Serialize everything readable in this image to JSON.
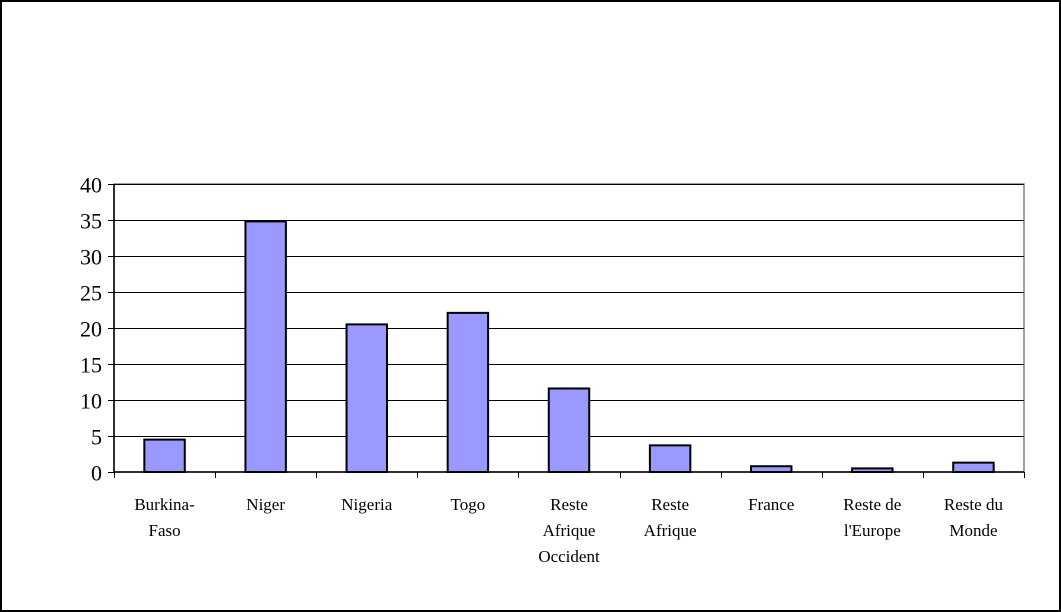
{
  "chart_data": {
    "type": "bar",
    "title": "",
    "xlabel": "",
    "ylabel": "",
    "categories": [
      [
        "Burkina-",
        "Faso"
      ],
      [
        "Niger"
      ],
      [
        "Nigeria"
      ],
      [
        "Togo"
      ],
      [
        "Reste",
        "Afrique",
        "Occident"
      ],
      [
        "Reste",
        "Afrique"
      ],
      [
        "France"
      ],
      [
        "Reste de",
        "l'Europe"
      ],
      [
        "Reste du",
        "Monde"
      ]
    ],
    "values": [
      4.5,
      34.8,
      20.5,
      22.1,
      11.6,
      3.7,
      0.8,
      0.5,
      1.3
    ],
    "ylim": [
      0,
      40
    ],
    "yticks": [
      "0",
      "5",
      "10",
      "15",
      "20",
      "25",
      "30",
      "35",
      "40"
    ],
    "grid": true,
    "legend": "none",
    "colors": {
      "bar_fill": "#9999ff",
      "bar_stroke": "#000000",
      "grid": "#000000",
      "frame": "#000000",
      "plot_border": "#808080"
    }
  }
}
